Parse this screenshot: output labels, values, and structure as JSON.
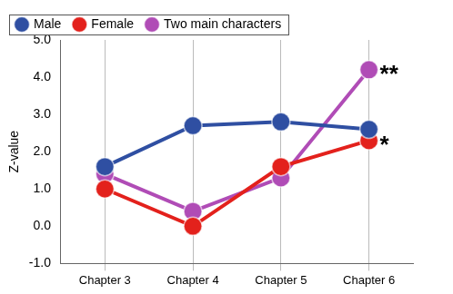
{
  "chart_data": {
    "type": "line",
    "y_label": "Z-value",
    "categories": [
      "Chapter 3",
      "Chapter 4",
      "Chapter 5",
      "Chapter 6"
    ],
    "series": [
      {
        "name": "Male",
        "color": "#2f4fa2",
        "marker": "circle",
        "values": [
          1.6,
          2.7,
          2.8,
          2.6
        ]
      },
      {
        "name": "Female",
        "color": "#e3211c",
        "marker": "circle",
        "values": [
          1.0,
          0.0,
          1.6,
          2.3
        ]
      },
      {
        "name": "Two main characters",
        "color": "#b04cb6",
        "marker": "circle",
        "values": [
          1.4,
          0.4,
          1.3,
          4.2
        ]
      }
    ],
    "ylim": [
      -1.0,
      5.0
    ],
    "yticks": [
      {
        "value": -1,
        "label": "-1.0"
      },
      {
        "value": 0,
        "label": "0.0"
      },
      {
        "value": 1,
        "label": "1.0"
      },
      {
        "value": 2,
        "label": "2.0"
      },
      {
        "value": 3,
        "label": "3.0"
      },
      {
        "value": 4,
        "label": "4.0"
      },
      {
        "value": 5,
        "label": "5.0"
      }
    ],
    "grid": "x",
    "legend": "top",
    "annotations": [
      {
        "text": "**",
        "series": "Two main characters",
        "category": "Chapter 6"
      },
      {
        "text": "*",
        "series": "Female",
        "category": "Chapter 6"
      }
    ]
  }
}
